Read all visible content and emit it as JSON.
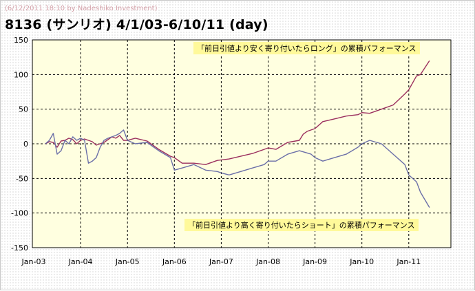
{
  "header": {
    "credit": "(6/12/2011 18:10 by Nadeshiko Investment)",
    "title": "8136 (サンリオ)  4/1/03-6/10/11 (day)"
  },
  "colors": {
    "plot_bg": "#ffffe0",
    "long_series": "#9b2f5e",
    "short_series": "#6b6fa8",
    "annotation_bg": "#fff99a",
    "grid": "#000000"
  },
  "chart_data": {
    "type": "line",
    "title": "8136 (サンリオ)  4/1/03-6/10/11 (day)",
    "xlabel": "",
    "ylabel": "",
    "ylim": [
      -150,
      150
    ],
    "yticks": [
      150,
      100,
      50,
      0,
      -50,
      -100,
      -150
    ],
    "xticks": [
      "Jan-03",
      "Jan-04",
      "Jan-05",
      "Jan-06",
      "Jan-07",
      "Jan-08",
      "Jan-09",
      "Jan-10",
      "Jan-11"
    ],
    "grid": true,
    "series": [
      {
        "name": "「前日引値より安く寄り付いたらロング」の累積パフォーマンス",
        "color": "#9b2f5e",
        "x": [
          "2003-04-01",
          "2003-05-01",
          "2003-06-01",
          "2003-07-01",
          "2003-08-01",
          "2003-09-01",
          "2003-10-01",
          "2003-11-01",
          "2003-12-01",
          "2004-01-01",
          "2004-02-01",
          "2004-03-01",
          "2004-04-01",
          "2004-05-01",
          "2004-06-01",
          "2004-07-01",
          "2004-08-01",
          "2004-09-01",
          "2004-10-01",
          "2004-11-01",
          "2004-12-01",
          "2005-01-01",
          "2005-03-01",
          "2005-06-01",
          "2005-09-01",
          "2005-12-01",
          "2006-01-01",
          "2006-03-01",
          "2006-06-01",
          "2006-09-01",
          "2006-12-01",
          "2007-03-01",
          "2007-06-01",
          "2007-09-01",
          "2007-12-01",
          "2008-01-01",
          "2008-03-01",
          "2008-06-01",
          "2008-09-01",
          "2008-10-01",
          "2008-11-01",
          "2009-01-01",
          "2009-03-01",
          "2009-06-01",
          "2009-09-01",
          "2009-12-01",
          "2010-01-01",
          "2010-03-01",
          "2010-06-01",
          "2010-09-01",
          "2010-12-01",
          "2011-01-01",
          "2011-03-01",
          "2011-04-01",
          "2011-06-10"
        ],
        "y": [
          0,
          3,
          2,
          -5,
          4,
          5,
          8,
          6,
          0,
          5,
          7,
          5,
          3,
          -2,
          0,
          2,
          6,
          10,
          8,
          12,
          5,
          5,
          8,
          4,
          -8,
          -18,
          -20,
          -28,
          -28,
          -30,
          -24,
          -22,
          -18,
          -14,
          -8,
          -6,
          -8,
          2,
          5,
          14,
          18,
          22,
          32,
          36,
          40,
          42,
          45,
          44,
          50,
          56,
          72,
          78,
          98,
          100,
          120
        ]
      },
      {
        "name": "「前日引値より高く寄り付いたらショート」の累積パフォーマンス",
        "color": "#6b6fa8",
        "x": [
          "2003-04-01",
          "2003-05-01",
          "2003-06-01",
          "2003-07-01",
          "2003-08-01",
          "2003-09-01",
          "2003-10-01",
          "2003-11-01",
          "2003-12-01",
          "2004-01-01",
          "2004-02-01",
          "2004-03-01",
          "2004-04-01",
          "2004-05-01",
          "2004-06-01",
          "2004-07-01",
          "2004-08-01",
          "2004-09-01",
          "2004-10-01",
          "2004-11-01",
          "2004-12-01",
          "2005-01-01",
          "2005-03-01",
          "2005-06-01",
          "2005-09-01",
          "2005-12-01",
          "2006-01-01",
          "2006-03-01",
          "2006-06-01",
          "2006-09-01",
          "2006-12-01",
          "2007-01-01",
          "2007-03-01",
          "2007-06-01",
          "2007-09-01",
          "2007-12-01",
          "2008-01-01",
          "2008-03-01",
          "2008-06-01",
          "2008-09-01",
          "2008-12-01",
          "2009-01-01",
          "2009-03-01",
          "2009-06-01",
          "2009-09-01",
          "2009-12-01",
          "2010-01-01",
          "2010-03-01",
          "2010-06-01",
          "2010-09-01",
          "2010-12-01",
          "2011-01-01",
          "2011-03-01",
          "2011-04-01",
          "2011-06-10"
        ],
        "y": [
          0,
          5,
          15,
          -15,
          -10,
          5,
          0,
          10,
          5,
          8,
          5,
          -28,
          -25,
          -20,
          -5,
          5,
          8,
          10,
          12,
          15,
          20,
          5,
          0,
          2,
          -10,
          -20,
          -38,
          -35,
          -30,
          -38,
          -40,
          -42,
          -45,
          -40,
          -35,
          -30,
          -25,
          -25,
          -15,
          -10,
          -15,
          -20,
          -25,
          -20,
          -15,
          -5,
          0,
          5,
          0,
          -15,
          -30,
          -45,
          -55,
          -70,
          -92
        ]
      }
    ]
  },
  "annotations": {
    "long": "「前日引値より安く寄り付いたらロング」の累積パフォーマンス",
    "short": "「前日引値より高く寄り付いたらショート」の累積パフォーマンス"
  }
}
